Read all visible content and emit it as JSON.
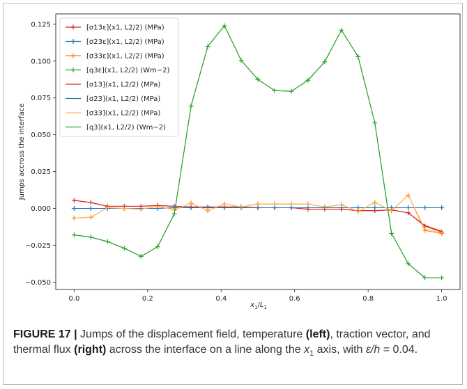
{
  "chart_data": {
    "type": "line",
    "xlabel_base": "x",
    "xlabel_sub1": "1",
    "xlabel_sep": "/",
    "xlabel_L": "L",
    "xlabel_sub2": "1",
    "ylabel": "Jumps accross the interface",
    "xlim": [
      -0.05,
      1.05
    ],
    "ylim": [
      -0.055,
      0.132
    ],
    "xticks": [
      0.0,
      0.2,
      0.4,
      0.6,
      0.8,
      1.0
    ],
    "xtick_labels": [
      "0.0",
      "0.2",
      "0.4",
      "0.6",
      "0.8",
      "1.0"
    ],
    "yticks": [
      -0.05,
      -0.025,
      0.0,
      0.025,
      0.05,
      0.075,
      0.1,
      0.125
    ],
    "ytick_labels": [
      "−0.050",
      "−0.025",
      "0.000",
      "0.025",
      "0.050",
      "0.075",
      "0.100",
      "0.125"
    ],
    "grid": false,
    "legend_position": "top-left",
    "x": [
      0.0,
      0.0455,
      0.0909,
      0.1364,
      0.1818,
      0.2273,
      0.2727,
      0.3182,
      0.3636,
      0.4091,
      0.4545,
      0.5,
      0.5455,
      0.5909,
      0.6364,
      0.6818,
      0.7273,
      0.7727,
      0.8182,
      0.8636,
      0.9091,
      0.9545,
      1.0
    ],
    "series": [
      {
        "name": "[σ13ε](x1, L2/2) (MPa)",
        "legend": {
          "sym": "σ",
          "sub": "13",
          "sup": "ε",
          "tail": "(MPa)"
        },
        "color": "#d62728",
        "marker": "plus",
        "values": [
          0.0055,
          0.004,
          0.0015,
          0.0015,
          0.0015,
          0.002,
          0.0015,
          0.001,
          0.001,
          0.001,
          0.001,
          0.0005,
          0.0005,
          0.0005,
          -0.0005,
          -0.0005,
          -0.0005,
          -0.0015,
          -0.0015,
          -0.001,
          -0.003,
          -0.012,
          -0.016
        ]
      },
      {
        "name": "[σ23ε](x1, L2/2) (MPa)",
        "legend": {
          "sym": "σ",
          "sub": "23",
          "sup": "ε",
          "tail": "(MPa)"
        },
        "color": "#1f77b4",
        "marker": "plus",
        "values": [
          0.0,
          0.0,
          0.0,
          0.0,
          0.0,
          0.0,
          0.0005,
          0.0005,
          0.0005,
          0.0005,
          0.0005,
          0.0005,
          0.0005,
          0.0005,
          0.0005,
          0.0005,
          0.0005,
          0.0005,
          0.0005,
          0.0005,
          0.0005,
          0.0005,
          0.0005
        ]
      },
      {
        "name": "[σ33ε](x1, L2/2) (MPa)",
        "legend": {
          "sym": "σ",
          "sub": "33",
          "sup": "ε",
          "tail": "(MPa)"
        },
        "color": "#ff7f0e",
        "marker": "plus",
        "values": [
          -0.0065,
          -0.006,
          0.0005,
          0.0,
          -0.0005,
          0.0015,
          -0.001,
          0.0035,
          -0.0015,
          0.003,
          0.001,
          0.003,
          0.003,
          0.003,
          0.003,
          0.001,
          0.0025,
          -0.002,
          0.004,
          -0.0015,
          0.009,
          -0.015,
          -0.017
        ]
      },
      {
        "name": "[q3ε](x1, L2/2) (Wm−2)",
        "legend": {
          "sym": "q",
          "sub": "3",
          "sup": "ε",
          "tail": "(Wm⁻²)"
        },
        "color": "#2ca02c",
        "marker": "plus",
        "values": [
          -0.018,
          -0.0195,
          -0.0225,
          -0.027,
          -0.0325,
          -0.026,
          -0.0035,
          0.0695,
          0.11,
          0.124,
          0.1005,
          0.0875,
          0.08,
          0.0795,
          0.087,
          0.0995,
          0.121,
          0.103,
          0.058,
          -0.017,
          -0.0375,
          -0.047,
          -0.047
        ]
      },
      {
        "name": "[σ13](x1, L2/2) (MPa)",
        "legend": {
          "sym": "σ",
          "sub": "13",
          "sup": "",
          "tail": "(MPa)"
        },
        "color": "#d62728",
        "marker": "none",
        "values": [
          0.0055,
          0.004,
          0.0015,
          0.0015,
          0.0015,
          0.002,
          0.0015,
          0.001,
          0.001,
          0.001,
          0.001,
          0.0005,
          0.0005,
          0.0005,
          -0.0005,
          -0.0005,
          -0.0005,
          -0.0015,
          -0.0015,
          -0.001,
          -0.003,
          -0.0115,
          -0.0155
        ]
      },
      {
        "name": "[σ23](x1, L2/2) (MPa)",
        "legend": {
          "sym": "σ",
          "sub": "23",
          "sup": "",
          "tail": "(MPa)"
        },
        "color": "#1f77b4",
        "marker": "none",
        "values": [
          0.0,
          0.0,
          0.0,
          0.0,
          0.0,
          0.0,
          0.0005,
          0.0005,
          0.0005,
          0.0005,
          0.0005,
          0.0005,
          0.0005,
          0.0005,
          0.0005,
          0.0005,
          0.0005,
          0.0005,
          0.0005,
          0.0005,
          0.0005,
          0.0005,
          0.0005
        ]
      },
      {
        "name": "[σ33](x1, L2/2) (MPa)",
        "legend": {
          "sym": "σ",
          "sub": "33",
          "sup": "",
          "tail": "(MPa)"
        },
        "color": "#ffb74d",
        "marker": "none",
        "values": [
          -0.0065,
          -0.006,
          0.0005,
          0.0,
          -0.0005,
          0.0015,
          -0.001,
          0.0035,
          -0.0015,
          0.003,
          0.001,
          0.003,
          0.003,
          0.003,
          0.003,
          0.001,
          0.0025,
          -0.002,
          0.004,
          -0.0015,
          0.009,
          -0.014,
          -0.0165
        ]
      },
      {
        "name": "[q3](x1, L2/2) (Wm−2)",
        "legend": {
          "sym": "q",
          "sub": "3",
          "sup": "",
          "tail": "(Wm⁻²)"
        },
        "color": "#2ca02c",
        "marker": "none",
        "values": [
          -0.018,
          -0.0195,
          -0.0225,
          -0.027,
          -0.0325,
          -0.026,
          -0.0035,
          0.0695,
          0.11,
          0.124,
          0.1005,
          0.0875,
          0.08,
          0.0795,
          0.087,
          0.0995,
          0.121,
          0.103,
          0.058,
          -0.017,
          -0.0375,
          -0.047,
          -0.047
        ]
      }
    ]
  },
  "caption": {
    "label": "FIGURE 17 |",
    "text_1": " Jumps of the displacement field, temperature ",
    "bold_1": "(left)",
    "text_2": ", traction vector, and thermal flux ",
    "bold_2": "(right)",
    "text_3": " across the interface on a line along the ",
    "var_x": "x",
    "var_x_sub": "1",
    "text_4": " axis, with ",
    "ratio": "ε/h",
    "text_5": " = 0.04."
  }
}
